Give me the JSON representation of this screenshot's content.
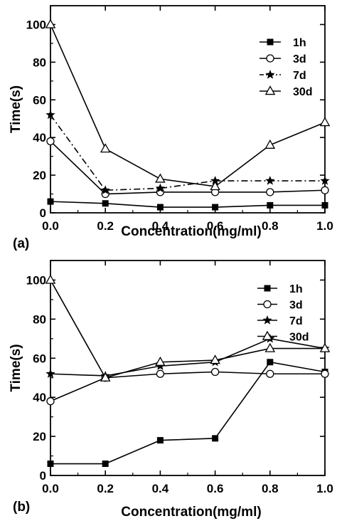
{
  "chart_data": [
    {
      "type": "line",
      "panel_label": "(a)",
      "xlabel": "Concentration(mg/ml)",
      "ylabel": "Time(s)",
      "xlim": [
        0.0,
        1.0
      ],
      "ylim": [
        0,
        110
      ],
      "x_ticks": [
        "0.0",
        "0.2",
        "0.4",
        "0.6",
        "0.8",
        "1.0"
      ],
      "y_ticks": [
        "0",
        "20",
        "40",
        "60",
        "80",
        "100"
      ],
      "legend_position": "top-right",
      "x": [
        0.0,
        0.2,
        0.4,
        0.6,
        0.8,
        1.0
      ],
      "series": [
        {
          "name": "1h",
          "marker": "filled-square",
          "line": "solid",
          "values": [
            6,
            5,
            3,
            3,
            4,
            4
          ]
        },
        {
          "name": "3d",
          "marker": "open-circle",
          "line": "solid",
          "values": [
            38,
            10,
            11,
            11,
            11,
            12
          ]
        },
        {
          "name": "7d",
          "marker": "star",
          "line": "dash-dot",
          "values": [
            52,
            12,
            13,
            17,
            17,
            17
          ]
        },
        {
          "name": "30d",
          "marker": "open-triangle",
          "line": "solid",
          "values": [
            100,
            34,
            18,
            14,
            36,
            48
          ]
        }
      ]
    },
    {
      "type": "line",
      "panel_label": "(b)",
      "xlabel": "Concentration(mg/ml)",
      "ylabel": "Time(s)",
      "xlim": [
        0.0,
        1.0
      ],
      "ylim": [
        0,
        110
      ],
      "x_ticks": [
        "0.0",
        "0.2",
        "0.4",
        "0.6",
        "0.8",
        "1.0"
      ],
      "y_ticks": [
        "0",
        "20",
        "40",
        "60",
        "80",
        "100"
      ],
      "legend_position": "top-right",
      "x": [
        0.0,
        0.2,
        0.4,
        0.6,
        0.8,
        1.0
      ],
      "series": [
        {
          "name": "1h",
          "marker": "filled-square",
          "line": "solid",
          "values": [
            6,
            6,
            18,
            19,
            58,
            53
          ]
        },
        {
          "name": "3d",
          "marker": "open-circle",
          "line": "solid",
          "values": [
            38,
            50,
            52,
            53,
            52,
            52
          ]
        },
        {
          "name": "7d",
          "marker": "star",
          "line": "solid",
          "values": [
            52,
            51,
            56,
            58,
            70,
            65
          ]
        },
        {
          "name": "30d",
          "marker": "open-triangle",
          "line": "solid",
          "values": [
            100,
            50,
            58,
            59,
            65,
            65
          ]
        }
      ]
    }
  ]
}
